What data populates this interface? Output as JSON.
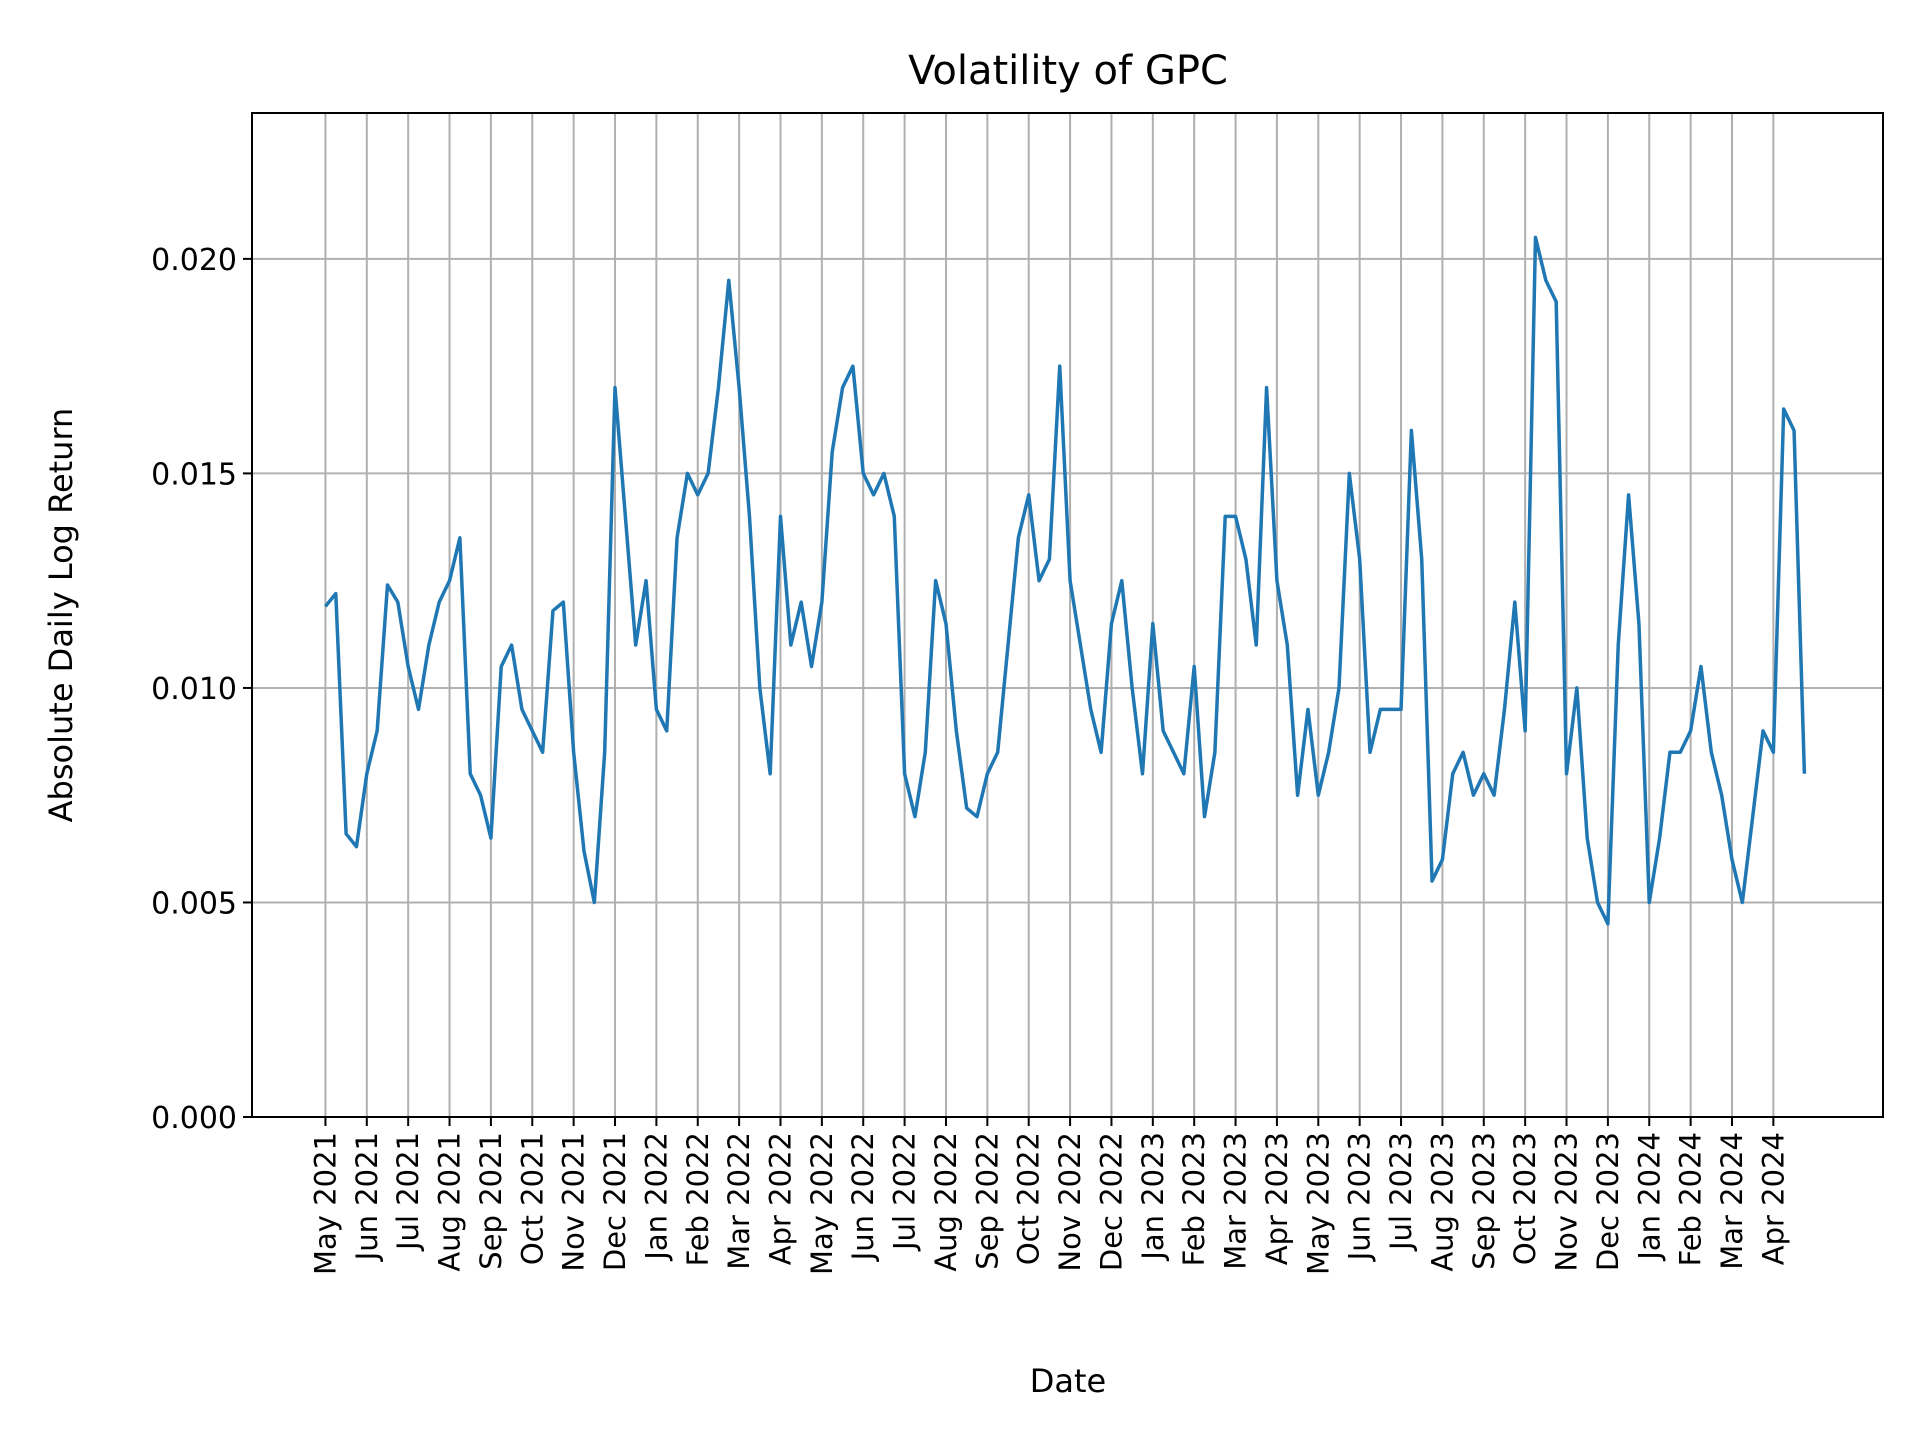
{
  "chart_data": {
    "type": "line",
    "title": "Volatility of GPC",
    "xlabel": "Date",
    "ylabel": "Absolute Daily Log Return",
    "series": [
      {
        "name": "GPC",
        "color": "#1f77b4",
        "values": [
          0.0119,
          0.0122,
          0.0066,
          0.0063,
          0.008,
          0.009,
          0.0124,
          0.012,
          0.0105,
          0.0095,
          0.011,
          0.012,
          0.0125,
          0.0135,
          0.008,
          0.0075,
          0.0065,
          0.0105,
          0.011,
          0.0095,
          0.009,
          0.0085,
          0.0118,
          0.012,
          0.0085,
          0.0062,
          0.005,
          0.0085,
          0.017,
          0.014,
          0.011,
          0.0125,
          0.0095,
          0.009,
          0.0135,
          0.015,
          0.0145,
          0.015,
          0.017,
          0.0195,
          0.017,
          0.014,
          0.01,
          0.008,
          0.014,
          0.011,
          0.012,
          0.0105,
          0.012,
          0.0155,
          0.017,
          0.0175,
          0.015,
          0.0145,
          0.015,
          0.014,
          0.008,
          0.007,
          0.0085,
          0.0125,
          0.0115,
          0.009,
          0.0072,
          0.007,
          0.008,
          0.0085,
          0.011,
          0.0135,
          0.0145,
          0.0125,
          0.013,
          0.0175,
          0.0125,
          0.011,
          0.0095,
          0.0085,
          0.0115,
          0.0125,
          0.01,
          0.008,
          0.0115,
          0.009,
          0.0085,
          0.008,
          0.0105,
          0.007,
          0.0085,
          0.014,
          0.014,
          0.013,
          0.011,
          0.017,
          0.0125,
          0.011,
          0.0075,
          0.0095,
          0.0075,
          0.0085,
          0.01,
          0.015,
          0.013,
          0.0085,
          0.0095,
          0.0095,
          0.0095,
          0.016,
          0.013,
          0.0055,
          0.006,
          0.008,
          0.0085,
          0.0075,
          0.008,
          0.0075,
          0.0095,
          0.012,
          0.009,
          0.0205,
          0.0195,
          0.019,
          0.008,
          0.01,
          0.0065,
          0.005,
          0.0045,
          0.011,
          0.0145,
          0.0115,
          0.005,
          0.0065,
          0.0085,
          0.0085,
          0.009,
          0.0105,
          0.0085,
          0.0075,
          0.006,
          0.005,
          0.007,
          0.009,
          0.0085,
          0.0165,
          0.016,
          0.008
        ]
      }
    ],
    "xlim": [
      -7.1,
      150.6
    ],
    "xticks": [
      {
        "value": 0,
        "label": "May 2021"
      },
      {
        "value": 4,
        "label": "Jun 2021"
      },
      {
        "value": 8,
        "label": "Jul 2021"
      },
      {
        "value": 12,
        "label": "Aug 2021"
      },
      {
        "value": 16,
        "label": "Sep 2021"
      },
      {
        "value": 20,
        "label": "Oct 2021"
      },
      {
        "value": 24,
        "label": "Nov 2021"
      },
      {
        "value": 28,
        "label": "Dec 2021"
      },
      {
        "value": 32,
        "label": "Jan 2022"
      },
      {
        "value": 36,
        "label": "Feb 2022"
      },
      {
        "value": 40,
        "label": "Mar 2022"
      },
      {
        "value": 44,
        "label": "Apr 2022"
      },
      {
        "value": 48,
        "label": "May 2022"
      },
      {
        "value": 52,
        "label": "Jun 2022"
      },
      {
        "value": 56,
        "label": "Jul 2022"
      },
      {
        "value": 60,
        "label": "Aug 2022"
      },
      {
        "value": 64,
        "label": "Sep 2022"
      },
      {
        "value": 68,
        "label": "Oct 2022"
      },
      {
        "value": 72,
        "label": "Nov 2022"
      },
      {
        "value": 76,
        "label": "Dec 2022"
      },
      {
        "value": 80,
        "label": "Jan 2023"
      },
      {
        "value": 84,
        "label": "Feb 2023"
      },
      {
        "value": 88,
        "label": "Mar 2023"
      },
      {
        "value": 92,
        "label": "Apr 2023"
      },
      {
        "value": 96,
        "label": "May 2023"
      },
      {
        "value": 100,
        "label": "Jun 2023"
      },
      {
        "value": 104,
        "label": "Jul 2023"
      },
      {
        "value": 108,
        "label": "Aug 2023"
      },
      {
        "value": 112,
        "label": "Sep 2023"
      },
      {
        "value": 116,
        "label": "Oct 2023"
      },
      {
        "value": 120,
        "label": "Nov 2023"
      },
      {
        "value": 124,
        "label": "Dec 2023"
      },
      {
        "value": 128,
        "label": "Jan 2024"
      },
      {
        "value": 132,
        "label": "Feb 2024"
      },
      {
        "value": 136,
        "label": "Mar 2024"
      },
      {
        "value": 140,
        "label": "Apr 2024"
      }
    ],
    "ylim": [
      0,
      0.0234
    ],
    "yticks": [
      {
        "value": 0,
        "label": "0.000"
      },
      {
        "value": 0.005,
        "label": "0.005"
      },
      {
        "value": 0.01,
        "label": "0.010"
      },
      {
        "value": 0.015,
        "label": "0.015"
      },
      {
        "value": 0.02,
        "label": "0.020"
      }
    ],
    "grid": true
  }
}
